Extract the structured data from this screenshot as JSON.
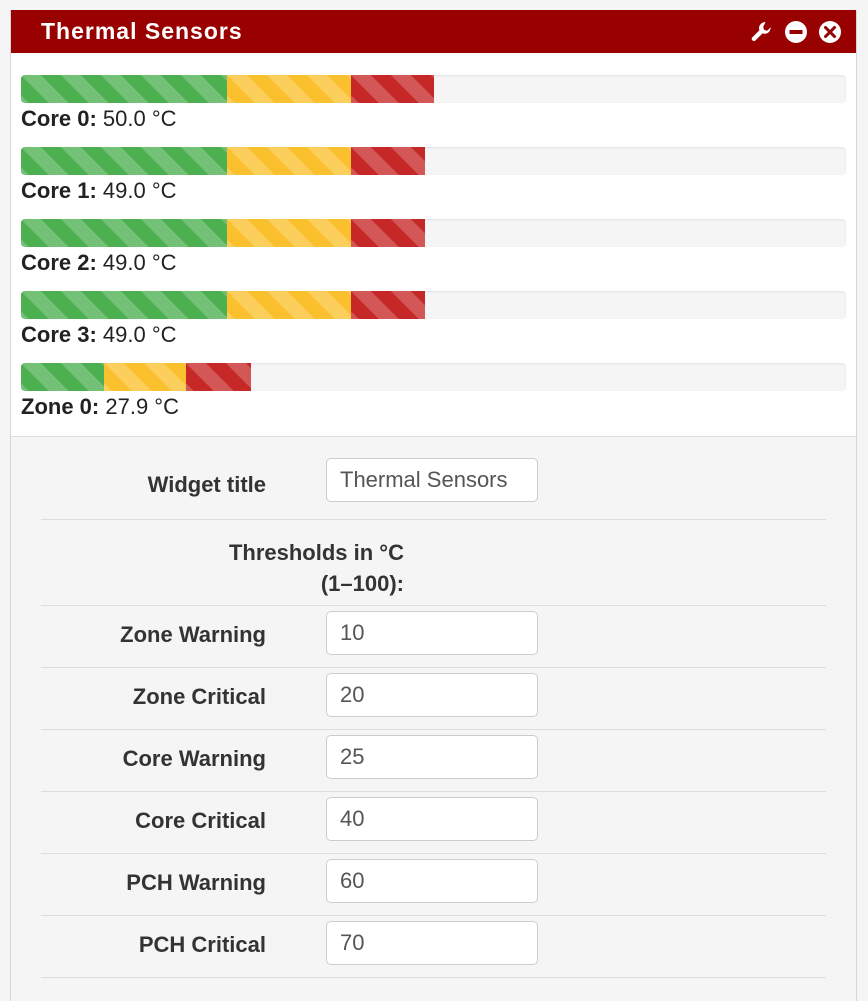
{
  "widget": {
    "title": "Thermal Sensors",
    "header_icons": [
      "wrench-icon",
      "minus-circle-icon",
      "close-circle-icon"
    ],
    "title_bar_color": "#990000"
  },
  "colors": {
    "green": "#4caf50",
    "yellow": "#fbc02d",
    "red": "#c62828"
  },
  "sensors": [
    {
      "name": "Core 0:",
      "value": "50.0 °C",
      "temp": 50.0,
      "warning": 25,
      "critical": 40
    },
    {
      "name": "Core 1:",
      "value": "49.0 °C",
      "temp": 49.0,
      "warning": 25,
      "critical": 40
    },
    {
      "name": "Core 2:",
      "value": "49.0 °C",
      "temp": 49.0,
      "warning": 25,
      "critical": 40
    },
    {
      "name": "Core 3:",
      "value": "49.0 °C",
      "temp": 49.0,
      "warning": 25,
      "critical": 40
    },
    {
      "name": "Zone 0:",
      "value": "27.9 °C",
      "temp": 27.9,
      "warning": 10,
      "critical": 20
    }
  ],
  "settings": {
    "widget_title_label": "Widget title",
    "widget_title_value": "Thermal Sensors",
    "thresholds_heading_1": "Thresholds in °C",
    "thresholds_heading_2": "(1–100):",
    "fields": [
      {
        "label": "Zone Warning",
        "value": "10"
      },
      {
        "label": "Zone Critical",
        "value": "20"
      },
      {
        "label": "Core Warning",
        "value": "25"
      },
      {
        "label": "Core Critical",
        "value": "40"
      },
      {
        "label": "PCH Warning",
        "value": "60"
      },
      {
        "label": "PCH Critical",
        "value": "70"
      }
    ]
  }
}
